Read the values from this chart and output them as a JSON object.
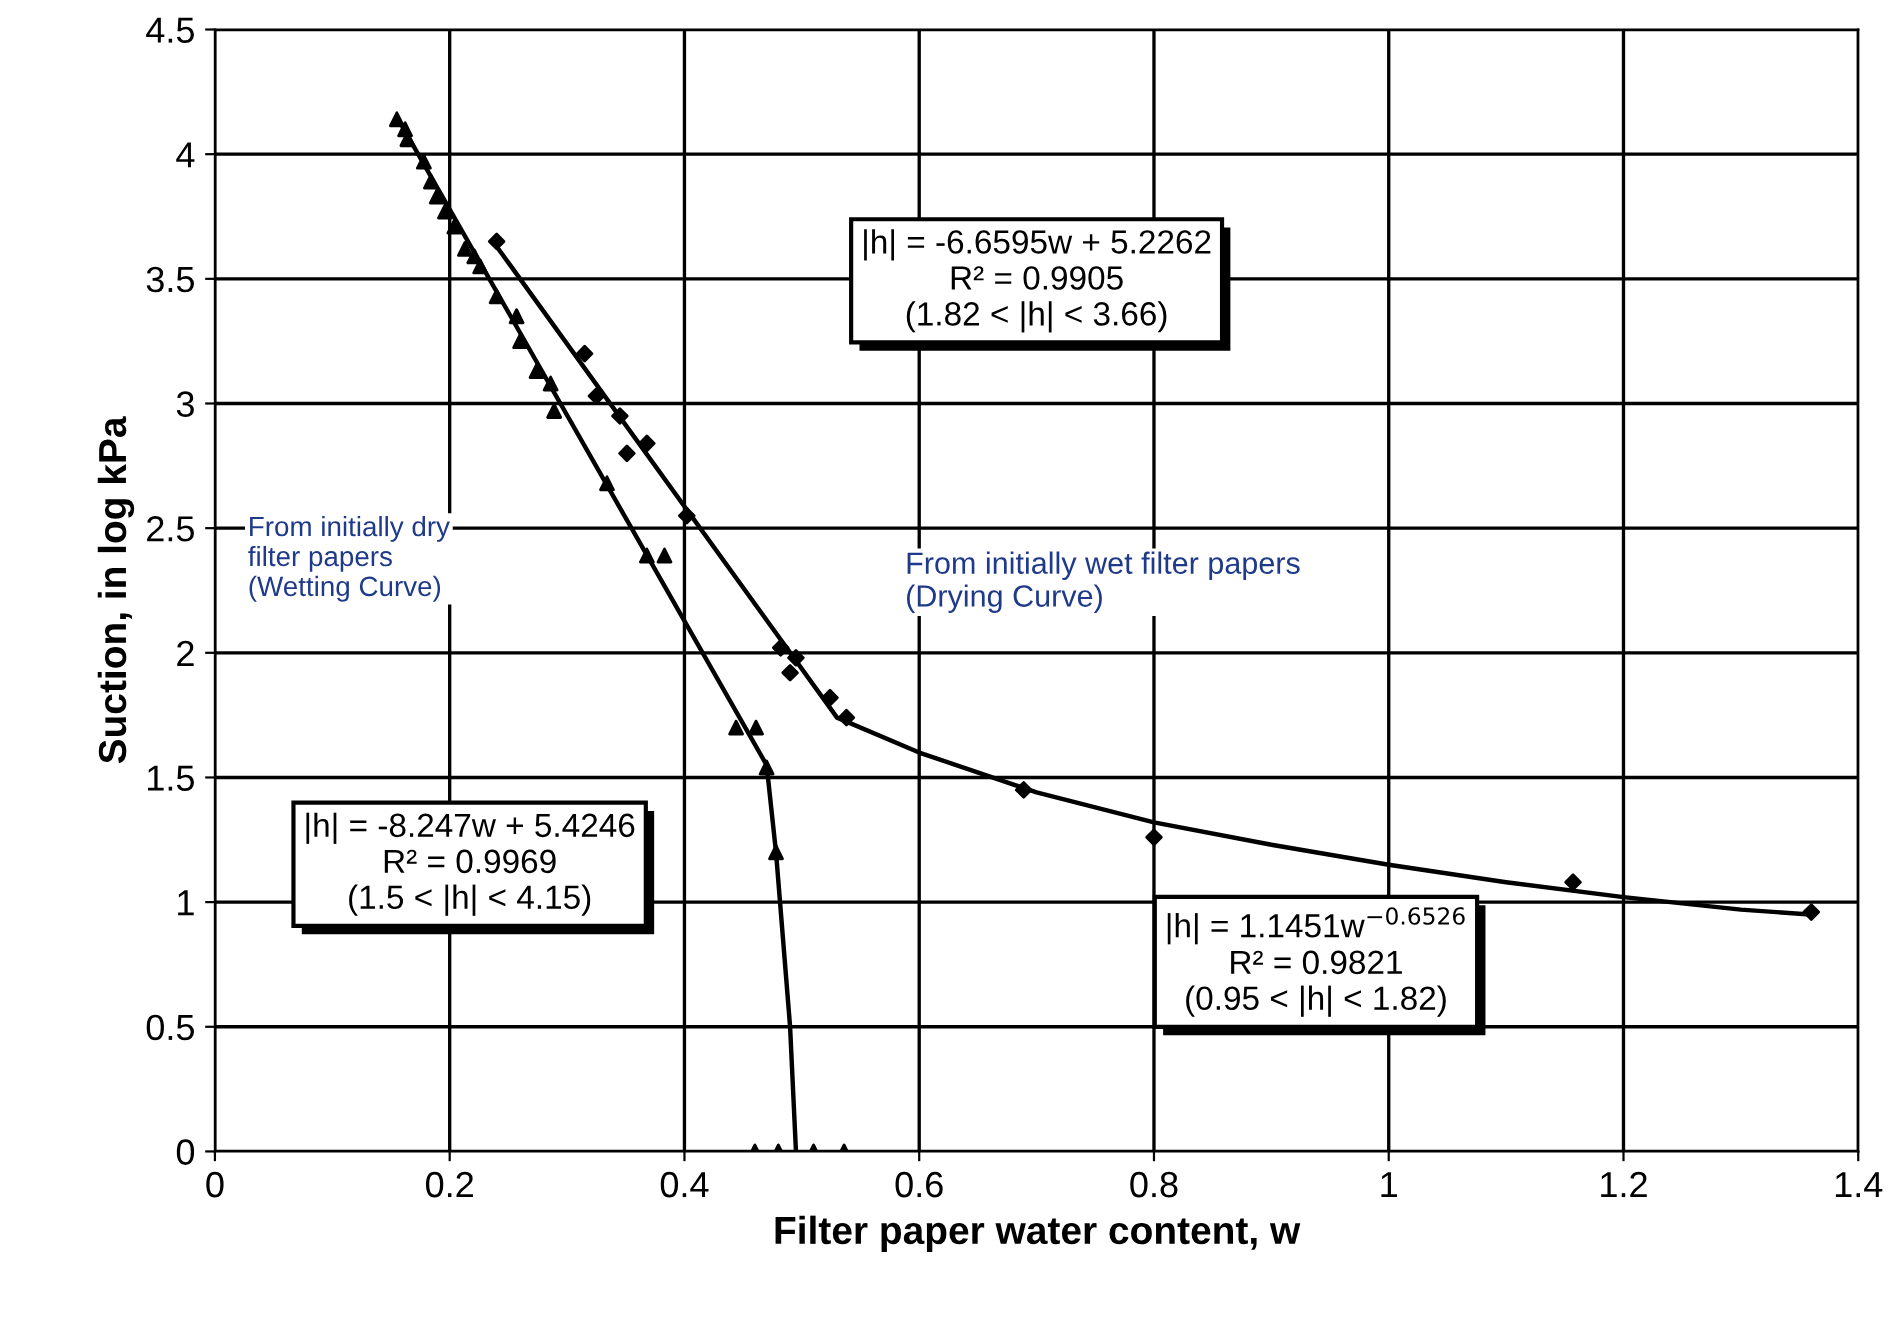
{
  "chart_data": {
    "type": "scatter",
    "xlabel": "Filter paper water content, w",
    "ylabel": "Suction, in log kPa",
    "xlim": [
      0,
      1.4
    ],
    "ylim": [
      0,
      4.5
    ],
    "xticks": [
      0,
      0.2,
      0.4,
      0.6,
      0.8,
      1,
      1.2,
      1.4
    ],
    "yticks": [
      0,
      0.5,
      1,
      1.5,
      2,
      2.5,
      3,
      3.5,
      4,
      4.5
    ],
    "grid": true,
    "series": [
      {
        "marker": "triangle",
        "color": "#000000",
        "x": [
          0.155,
          0.162,
          0.164,
          0.178,
          0.184,
          0.189,
          0.196,
          0.204,
          0.213,
          0.221,
          0.226,
          0.24,
          0.257,
          0.26,
          0.274,
          0.286,
          0.289,
          0.334,
          0.368,
          0.383,
          0.444,
          0.461,
          0.47,
          0.478,
          0.46,
          0.48,
          0.51,
          0.536
        ],
        "values": [
          4.14,
          4.1,
          4.06,
          3.97,
          3.89,
          3.83,
          3.77,
          3.71,
          3.62,
          3.59,
          3.55,
          3.43,
          3.35,
          3.25,
          3.13,
          3.08,
          2.97,
          2.68,
          2.39,
          2.39,
          1.7,
          1.7,
          1.54,
          1.2,
          0,
          0,
          0,
          0
        ]
      },
      {
        "marker": "diamond",
        "color": "#000000",
        "x": [
          0.24,
          0.315,
          0.325,
          0.345,
          0.351,
          0.368,
          0.402,
          0.482,
          0.495,
          0.49,
          0.524,
          0.538,
          0.689,
          0.8,
          1.157,
          1.36
        ],
        "values": [
          3.65,
          3.2,
          3.03,
          2.95,
          2.8,
          2.84,
          2.55,
          2.02,
          1.98,
          1.92,
          1.82,
          1.74,
          1.45,
          1.26,
          1.08,
          0.96
        ]
      },
      {
        "type": "line",
        "marker": "none",
        "color": "#000000",
        "x": [
          0.155,
          0.47,
          0.478,
          0.49,
          0.495
        ],
        "values": [
          4.15,
          1.55,
          1.2,
          0.5,
          0
        ]
      },
      {
        "type": "line",
        "marker": "none",
        "color": "#000000",
        "x": [
          0.24,
          0.53,
          0.6,
          0.7,
          0.8,
          0.9,
          1.0,
          1.1,
          1.2,
          1.3,
          1.36
        ],
        "values": [
          3.63,
          1.74,
          1.6,
          1.44,
          1.32,
          1.23,
          1.15,
          1.08,
          1.02,
          0.97,
          0.95
        ]
      }
    ],
    "annotations": [
      "|h| = -6.6595w + 5.2262\nR² = 0.9905\n(1.82 < |h| < 3.66)",
      "From initially dry\nfilter papers\n(Wetting Curve)",
      "From initially wet filter papers\n(Drying Curve)",
      "|h| = -8.247w + 5.4246\nR² = 0.9969\n(1.5 < |h| < 4.15)",
      "|h| = 1.1451w$^{−0.6526}$\nR² = 0.9821\n(0.95 < |h| < 1.82)"
    ]
  }
}
